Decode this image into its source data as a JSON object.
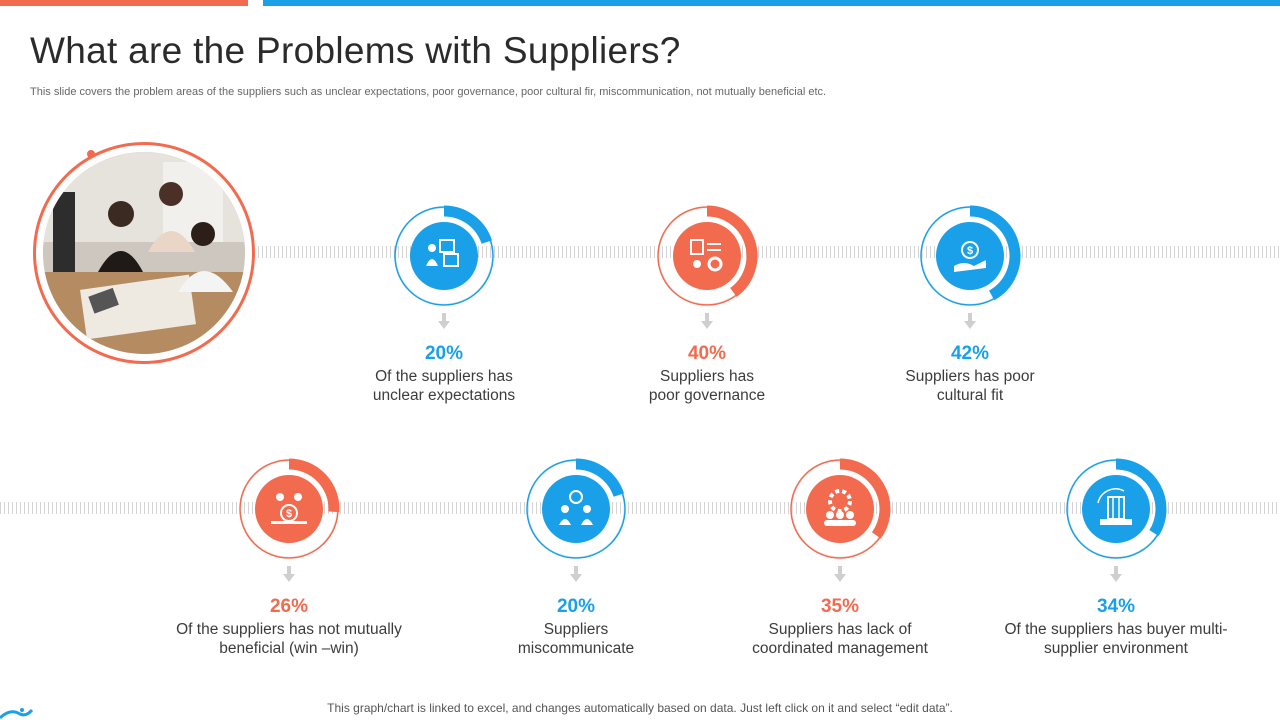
{
  "header": {
    "title": "What are the Problems with Suppliers?",
    "subtitle": "This slide covers the problem areas of the suppliers such as unclear expectations, poor governance, poor cultural fir, miscommunication,  not mutually beneficial etc."
  },
  "colors": {
    "blue": "#1aa0e8",
    "orange": "#f26b4f",
    "ring_track": "#ececec"
  },
  "stats": [
    {
      "pct": "20%",
      "line1": "Of the suppliers has",
      "line2": "unclear expectations",
      "value": 20,
      "color": "blue",
      "icon": "supplier-boxes-icon"
    },
    {
      "pct": "40%",
      "line1": "Suppliers has",
      "line2": "poor governance",
      "value": 40,
      "color": "orange",
      "icon": "governance-gears-icon"
    },
    {
      "pct": "42%",
      "line1": "Suppliers has poor",
      "line2": "cultural fit",
      "value": 42,
      "color": "blue",
      "icon": "money-hand-icon"
    },
    {
      "pct": "26%",
      "line1": "Of the suppliers has not mutually",
      "line2": "beneficial (win –win)",
      "value": 26,
      "color": "orange",
      "icon": "people-dollar-icon"
    },
    {
      "pct": "20%",
      "line1": "Suppliers",
      "line2": "miscommunicate",
      "value": 20,
      "color": "blue",
      "icon": "people-talking-icon"
    },
    {
      "pct": "35%",
      "line1": "Suppliers has lack of",
      "line2": "coordinated management",
      "value": 35,
      "color": "orange",
      "icon": "team-gear-icon"
    },
    {
      "pct": "34%",
      "line1": "Of the suppliers has buyer multi-",
      "line2": "supplier environment",
      "value": 34,
      "color": "blue",
      "icon": "building-cycle-icon"
    }
  ],
  "footer": {
    "note": "This graph/chart is linked to excel, and changes automatically based on data. Just left click on it and select “edit data”."
  }
}
